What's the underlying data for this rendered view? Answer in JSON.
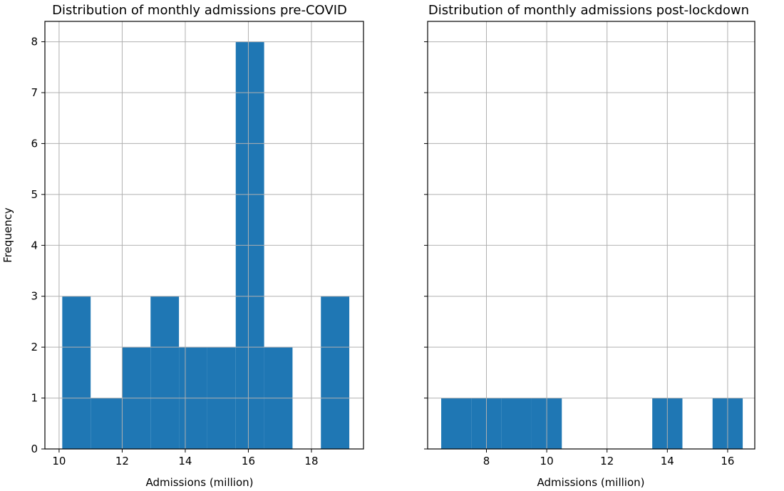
{
  "chart_data": [
    {
      "type": "bar",
      "title": "Distribution of monthly admissions pre-COVID",
      "xlabel": "Admissions (million)",
      "ylabel": "Frequency",
      "xlim": [
        9.55,
        19.65
      ],
      "ylim": [
        0,
        8.4
      ],
      "xticks": [
        10,
        12,
        14,
        16,
        18
      ],
      "yticks": [
        0,
        1,
        2,
        3,
        4,
        5,
        6,
        7,
        8
      ],
      "grid": true,
      "bins": [
        {
          "x0": 10.1,
          "x1": 11.0,
          "count": 3
        },
        {
          "x0": 11.0,
          "x1": 12.0,
          "count": 1
        },
        {
          "x0": 12.0,
          "x1": 12.9,
          "count": 2
        },
        {
          "x0": 12.9,
          "x1": 13.8,
          "count": 3
        },
        {
          "x0": 13.8,
          "x1": 14.7,
          "count": 2
        },
        {
          "x0": 14.7,
          "x1": 15.6,
          "count": 2
        },
        {
          "x0": 15.6,
          "x1": 16.5,
          "count": 8
        },
        {
          "x0": 16.5,
          "x1": 17.4,
          "count": 2
        },
        {
          "x0": 17.4,
          "x1": 18.3,
          "count": 0
        },
        {
          "x0": 18.3,
          "x1": 19.2,
          "count": 3
        }
      ]
    },
    {
      "type": "bar",
      "title": "Distribution of monthly admissions post-lockdown",
      "xlabel": "Admissions (million)",
      "ylabel": "",
      "xlim": [
        6.05,
        16.9
      ],
      "ylim": [
        0,
        8.4
      ],
      "xticks": [
        8,
        10,
        12,
        14,
        16
      ],
      "yticks": [
        0,
        1,
        2,
        3,
        4,
        5,
        6,
        7,
        8
      ],
      "grid": true,
      "bins": [
        {
          "x0": 6.5,
          "x1": 7.5,
          "count": 1
        },
        {
          "x0": 7.5,
          "x1": 8.5,
          "count": 1
        },
        {
          "x0": 8.5,
          "x1": 9.5,
          "count": 1
        },
        {
          "x0": 9.5,
          "x1": 10.5,
          "count": 1
        },
        {
          "x0": 10.5,
          "x1": 11.5,
          "count": 0
        },
        {
          "x0": 11.5,
          "x1": 12.5,
          "count": 0
        },
        {
          "x0": 12.5,
          "x1": 13.5,
          "count": 0
        },
        {
          "x0": 13.5,
          "x1": 14.5,
          "count": 1
        },
        {
          "x0": 14.5,
          "x1": 15.5,
          "count": 0
        },
        {
          "x0": 15.5,
          "x1": 16.5,
          "count": 1
        }
      ]
    }
  ],
  "colors": {
    "bar": "#1f77b4",
    "grid": "#b0b0b0"
  }
}
